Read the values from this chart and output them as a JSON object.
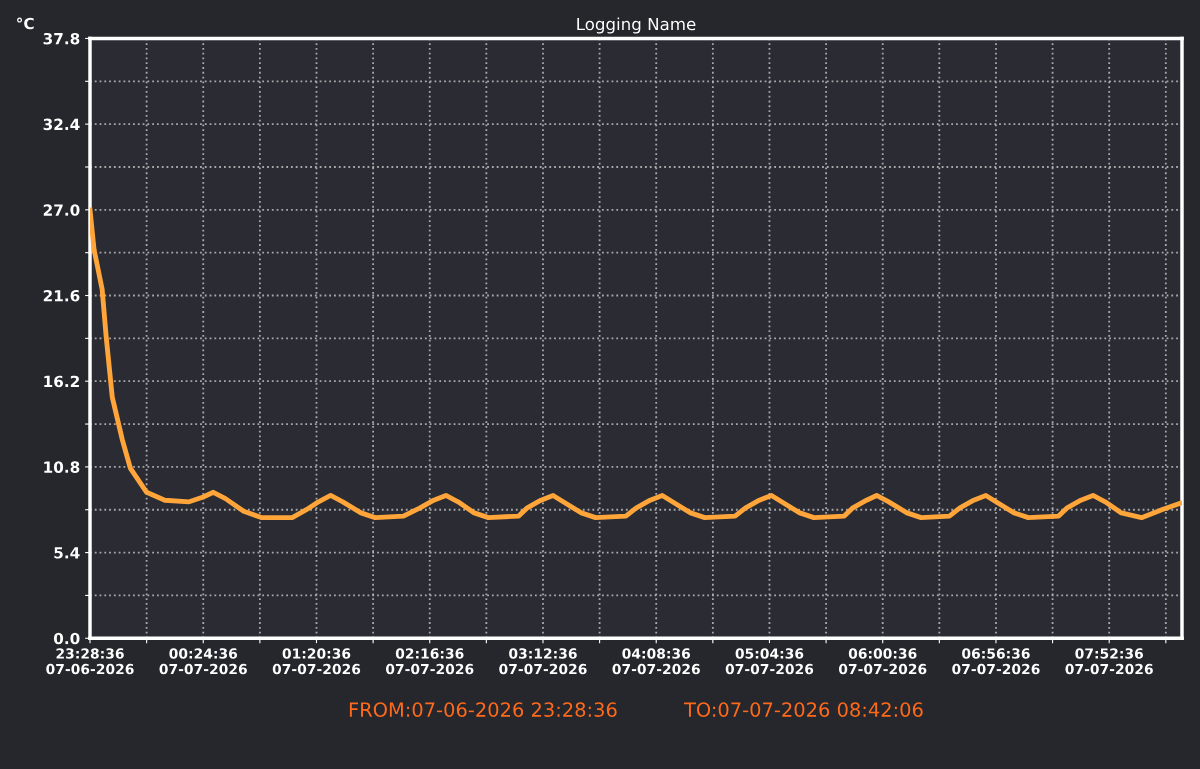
{
  "chart_data": {
    "type": "line",
    "title": "Logging Name",
    "ylabel": "°C",
    "x": [
      "2026-07-06T23:28:36",
      "2026-07-06T23:30:36",
      "2026-07-06T23:34:36",
      "2026-07-06T23:36:36",
      "2026-07-06T23:39:36",
      "2026-07-06T23:44:36",
      "2026-07-06T23:48:36",
      "2026-07-06T23:56:36",
      "2026-07-07T00:05:36",
      "2026-07-07T00:17:36",
      "2026-07-07T00:24:36",
      "2026-07-07T00:29:36",
      "2026-07-07T00:35:36",
      "2026-07-07T00:44:36",
      "2026-07-07T00:53:36",
      "2026-07-07T01:08:36",
      "2026-07-07T01:15:36",
      "2026-07-07T01:21:36",
      "2026-07-07T01:27:36",
      "2026-07-07T01:33:36",
      "2026-07-07T01:42:36",
      "2026-07-07T01:49:36",
      "2026-07-07T02:03:36",
      "2026-07-07T02:11:36",
      "2026-07-07T02:18:36",
      "2026-07-07T02:24:36",
      "2026-07-07T02:30:36",
      "2026-07-07T02:38:36",
      "2026-07-07T02:45:36",
      "2026-07-07T03:00:36",
      "2026-07-07T03:04:36",
      "2026-07-07T03:11:36",
      "2026-07-07T03:17:36",
      "2026-07-07T03:22:36",
      "2026-07-07T03:31:36",
      "2026-07-07T03:38:36",
      "2026-07-07T03:53:36",
      "2026-07-07T03:58:36",
      "2026-07-07T04:05:36",
      "2026-07-07T04:11:36",
      "2026-07-07T04:16:36",
      "2026-07-07T04:25:36",
      "2026-07-07T04:32:36",
      "2026-07-07T04:47:36",
      "2026-07-07T04:52:36",
      "2026-07-07T04:59:36",
      "2026-07-07T05:05:36",
      "2026-07-07T05:10:36",
      "2026-07-07T05:19:36",
      "2026-07-07T05:26:36",
      "2026-07-07T05:41:36",
      "2026-07-07T05:45:36",
      "2026-07-07T05:52:36",
      "2026-07-07T05:57:36",
      "2026-07-07T06:03:36",
      "2026-07-07T06:12:36",
      "2026-07-07T06:19:36",
      "2026-07-07T06:33:36",
      "2026-07-07T06:38:36",
      "2026-07-07T06:45:36",
      "2026-07-07T06:51:36",
      "2026-07-07T06:56:36",
      "2026-07-07T07:05:36",
      "2026-07-07T07:12:36",
      "2026-07-07T07:27:36",
      "2026-07-07T07:31:36",
      "2026-07-07T07:38:36",
      "2026-07-07T07:44:36",
      "2026-07-07T07:50:36",
      "2026-07-07T07:58:36",
      "2026-07-07T08:08:36",
      "2026-07-07T08:18:36",
      "2026-07-07T08:27:36"
    ],
    "series": [
      {
        "color": "#ffa53a",
        "values": [
          27.0,
          24.5,
          22.0,
          19.0,
          15.2,
          12.5,
          10.7,
          9.2,
          8.7,
          8.6,
          8.9,
          9.2,
          8.8,
          8.0,
          7.6,
          7.6,
          8.1,
          8.6,
          9.0,
          8.6,
          7.9,
          7.6,
          7.7,
          8.2,
          8.7,
          9.0,
          8.6,
          7.9,
          7.6,
          7.7,
          8.2,
          8.7,
          9.0,
          8.6,
          7.9,
          7.6,
          7.7,
          8.2,
          8.7,
          9.0,
          8.6,
          7.9,
          7.6,
          7.7,
          8.2,
          8.7,
          9.0,
          8.6,
          7.9,
          7.6,
          7.7,
          8.2,
          8.7,
          9.0,
          8.6,
          7.9,
          7.6,
          7.7,
          8.2,
          8.7,
          9.0,
          8.6,
          7.9,
          7.6,
          7.7,
          8.2,
          8.7,
          9.0,
          8.6,
          7.9,
          7.6,
          8.1,
          8.5
        ]
      }
    ],
    "xlim": [
      "2026-07-06T23:28:36",
      "2026-07-07T08:28:36"
    ],
    "xticks": [
      {
        "value": "2026-07-06T23:28:36",
        "label": "23:28:36\n07-06-2026"
      },
      {
        "value": "2026-07-06T23:56:36",
        "label": null
      },
      {
        "value": "2026-07-07T00:24:36",
        "label": "00:24:36\n07-07-2026"
      },
      {
        "value": "2026-07-07T00:52:36",
        "label": null
      },
      {
        "value": "2026-07-07T01:20:36",
        "label": "01:20:36\n07-07-2026"
      },
      {
        "value": "2026-07-07T01:48:36",
        "label": null
      },
      {
        "value": "2026-07-07T02:16:36",
        "label": "02:16:36\n07-07-2026"
      },
      {
        "value": "2026-07-07T02:44:36",
        "label": null
      },
      {
        "value": "2026-07-07T03:12:36",
        "label": "03:12:36\n07-07-2026"
      },
      {
        "value": "2026-07-07T03:40:36",
        "label": null
      },
      {
        "value": "2026-07-07T04:08:36",
        "label": "04:08:36\n07-07-2026"
      },
      {
        "value": "2026-07-07T04:36:36",
        "label": null
      },
      {
        "value": "2026-07-07T05:04:36",
        "label": "05:04:36\n07-07-2026"
      },
      {
        "value": "2026-07-07T05:32:36",
        "label": null
      },
      {
        "value": "2026-07-07T06:00:36",
        "label": "06:00:36\n07-07-2026"
      },
      {
        "value": "2026-07-07T06:28:36",
        "label": null
      },
      {
        "value": "2026-07-07T06:56:36",
        "label": "06:56:36\n07-07-2026"
      },
      {
        "value": "2026-07-07T07:24:36",
        "label": null
      },
      {
        "value": "2026-07-07T07:52:36",
        "label": "07:52:36\n07-07-2026"
      },
      {
        "value": "2026-07-07T08:20:36",
        "label": null
      }
    ],
    "ylim": [
      0,
      37.8
    ],
    "yticks": [
      {
        "value": 0,
        "label": "0.0"
      },
      {
        "value": 2.7,
        "label": null
      },
      {
        "value": 5.4,
        "label": "5.4"
      },
      {
        "value": 8.1,
        "label": null
      },
      {
        "value": 10.8,
        "label": "10.8"
      },
      {
        "value": 13.5,
        "label": null
      },
      {
        "value": 16.2,
        "label": "16.2"
      },
      {
        "value": 18.9,
        "label": null
      },
      {
        "value": 21.6,
        "label": "21.6"
      },
      {
        "value": 24.3,
        "label": null
      },
      {
        "value": 27.0,
        "label": "27.0"
      },
      {
        "value": 29.7,
        "label": null
      },
      {
        "value": 32.4,
        "label": "32.4"
      },
      {
        "value": 35.1,
        "label": null
      },
      {
        "value": 37.8,
        "label": "37.8"
      }
    ],
    "grid": true,
    "marker": "none",
    "line_style": "solid",
    "annotations": [
      "FROM:07-06-2026 23:28:36",
      "TO:07-07-2026 08:42:06"
    ]
  }
}
